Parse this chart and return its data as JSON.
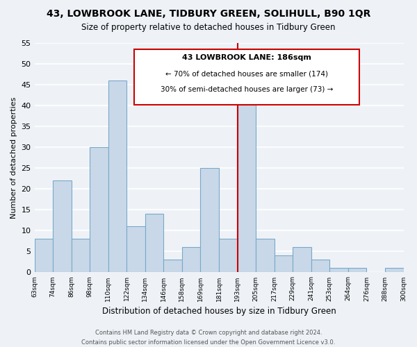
{
  "title": "43, LOWBROOK LANE, TIDBURY GREEN, SOLIHULL, B90 1QR",
  "subtitle": "Size of property relative to detached houses in Tidbury Green",
  "xlabel": "Distribution of detached houses by size in Tidbury Green",
  "ylabel": "Number of detached properties",
  "tick_labels": [
    "63sqm",
    "74sqm",
    "86sqm",
    "98sqm",
    "110sqm",
    "122sqm",
    "134sqm",
    "146sqm",
    "158sqm",
    "169sqm",
    "181sqm",
    "193sqm",
    "205sqm",
    "217sqm",
    "229sqm",
    "241sqm",
    "253sqm",
    "264sqm",
    "276sqm",
    "288sqm",
    "300sqm"
  ],
  "bar_values": [
    8,
    22,
    8,
    30,
    46,
    11,
    14,
    3,
    6,
    25,
    8,
    41,
    8,
    4,
    6,
    3,
    1,
    1,
    0,
    1
  ],
  "bar_color": "#c8d8e8",
  "bar_edge_color": "#7aa8c8",
  "ylim": [
    0,
    55
  ],
  "yticks": [
    0,
    5,
    10,
    15,
    20,
    25,
    30,
    35,
    40,
    45,
    50,
    55
  ],
  "vline_x": 10.5,
  "vline_color": "#cc0000",
  "annotation_title": "43 LOWBROOK LANE: 186sqm",
  "annotation_line1": "← 70% of detached houses are smaller (174)",
  "annotation_line2": "30% of semi-detached houses are larger (73) →",
  "footer1": "Contains HM Land Registry data © Crown copyright and database right 2024.",
  "footer2": "Contains public sector information licensed under the Open Government Licence v3.0.",
  "background_color": "#eef2f7",
  "grid_color": "#ffffff"
}
